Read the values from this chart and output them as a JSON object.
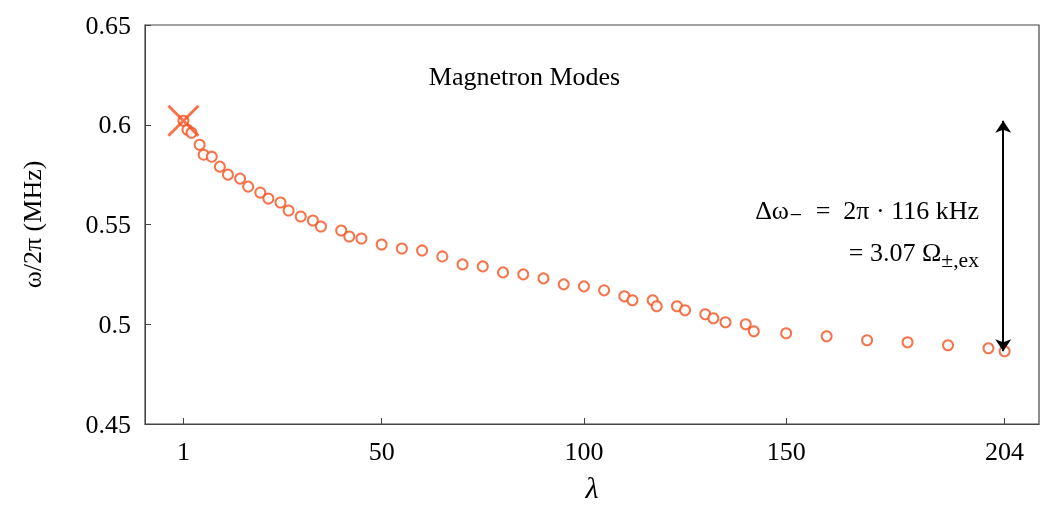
{
  "chart_data": {
    "type": "scatter",
    "title": "Magnetron Modes",
    "xlabel": "λ",
    "ylabel": "ω/2π (MHz)",
    "xlim": [
      -8.5,
      212.5
    ],
    "xticks": [
      1,
      50,
      100,
      150,
      204
    ],
    "ylim": [
      0.45,
      0.65
    ],
    "yticks": [
      0.45,
      0.5,
      0.55,
      0.6,
      0.65
    ],
    "grid": false,
    "series": [
      {
        "color": "#f4511e",
        "marker": "circle",
        "x": [
          1,
          2,
          3,
          5,
          6,
          8,
          10,
          12,
          15,
          17,
          20,
          22,
          25,
          27,
          30,
          33,
          35,
          40,
          42,
          45,
          50,
          55,
          60,
          65,
          70,
          75,
          80,
          85,
          90,
          95,
          100,
          105,
          110,
          112,
          117,
          118,
          123,
          125,
          130,
          132,
          135,
          140,
          142,
          150,
          160,
          170,
          180,
          190,
          200,
          204
        ],
        "values": [
          0.602,
          0.5975,
          0.596,
          0.59,
          0.585,
          0.584,
          0.579,
          0.575,
          0.573,
          0.569,
          0.566,
          0.563,
          0.561,
          0.557,
          0.554,
          0.552,
          0.549,
          0.547,
          0.544,
          0.543,
          0.54,
          0.538,
          0.537,
          0.534,
          0.53,
          0.529,
          0.526,
          0.525,
          0.523,
          0.52,
          0.519,
          0.517,
          0.514,
          0.512,
          0.512,
          0.509,
          0.509,
          0.507,
          0.505,
          0.503,
          0.501,
          0.5,
          0.4965,
          0.4955,
          0.494,
          0.492,
          0.491,
          0.4895,
          0.488,
          0.4865
        ]
      },
      {
        "color": "#f4511e",
        "marker": "cross",
        "x": [
          1
        ],
        "values": [
          0.602
        ]
      }
    ],
    "annotations": [
      "Δω₋  =  2π · 116 kHz",
      "= 3.07 Ω$_{±,ex}$"
    ]
  }
}
